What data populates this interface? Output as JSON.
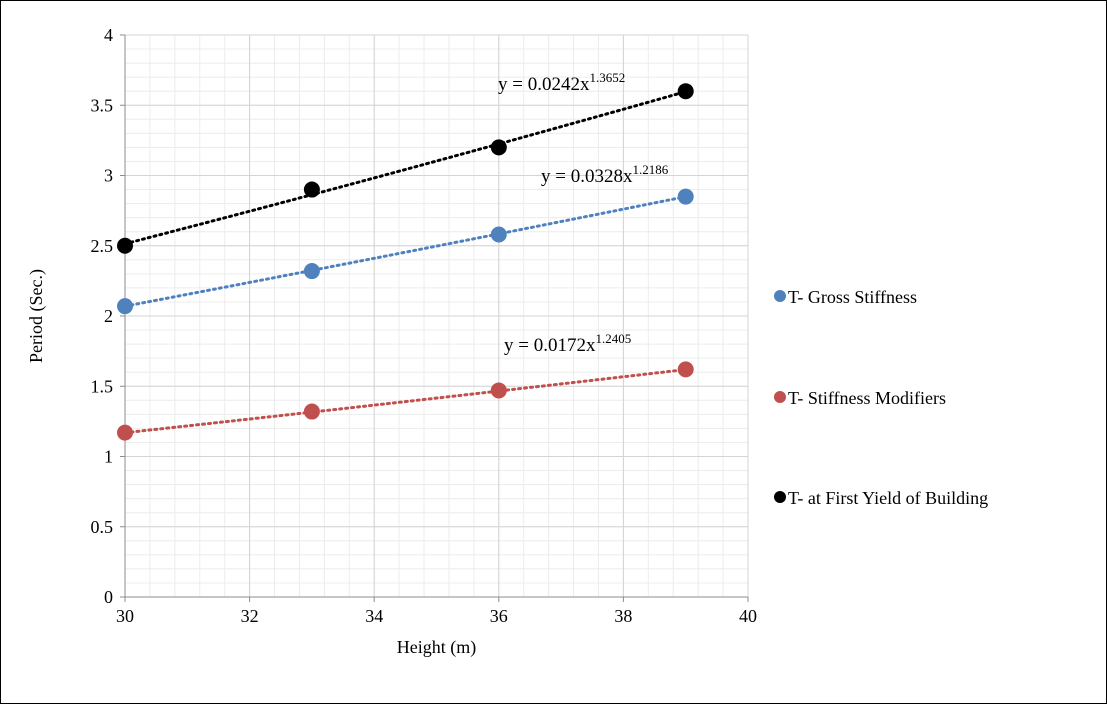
{
  "chart_data": {
    "type": "scatter",
    "xlabel": "Height (m)",
    "ylabel": "Period (Sec.)",
    "xlim": [
      30,
      40
    ],
    "ylim": [
      0,
      4
    ],
    "x_ticks": [
      "30",
      "32",
      "34",
      "36",
      "38",
      "40"
    ],
    "y_ticks": [
      "0",
      "0.5",
      "1",
      "1.5",
      "2",
      "2.5",
      "3",
      "3.5",
      "4"
    ],
    "grid": true,
    "legend_position": "right",
    "series": [
      {
        "name": "T- Gross Stiffness",
        "color": "#4f81bd",
        "x": [
          30,
          33,
          36,
          39
        ],
        "y": [
          2.07,
          2.32,
          2.58,
          2.85
        ],
        "trendline": {
          "type": "power",
          "a": 0.0328,
          "b": 1.2186,
          "equation": "y = 0.0328x",
          "exponent": "1.2186"
        }
      },
      {
        "name": "T- Stiffness Modifiers",
        "color": "#c0504d",
        "x": [
          30,
          33,
          36,
          39
        ],
        "y": [
          1.17,
          1.32,
          1.47,
          1.62
        ],
        "trendline": {
          "type": "power",
          "a": 0.0172,
          "b": 1.2405,
          "equation": "y = 0.0172x",
          "exponent": "1.2405"
        }
      },
      {
        "name": "T- at First Yield of Building",
        "color": "#000000",
        "x": [
          30,
          33,
          36,
          39
        ],
        "y": [
          2.5,
          2.9,
          3.2,
          3.6
        ],
        "trendline": {
          "type": "power",
          "a": 0.0242,
          "b": 1.3652,
          "equation": "y = 0.0242x",
          "exponent": "1.3652"
        }
      }
    ]
  }
}
